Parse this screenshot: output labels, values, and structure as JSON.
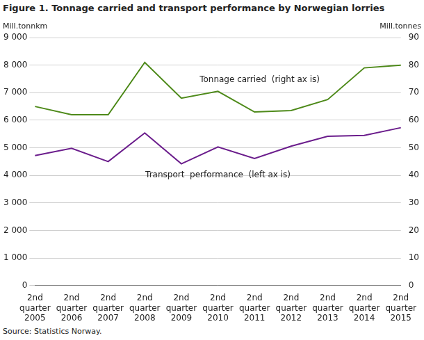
{
  "chart_data": {
    "type": "line",
    "title": "Figure 1.  Tonnage carried and transport performance by Norwegian lorries",
    "ylabel": "Mill.tonnkm",
    "y2label": "Mill.tonnes",
    "source": "Source: Statistics Norway.",
    "categories": [
      "2nd quarter 2005",
      "2nd quarter 2006",
      "2nd quarter 2007",
      "2nd quarter 2008",
      "2nd quarter 2009",
      "2nd quarter 2010",
      "2nd quarter 2011",
      "2nd quarter 2012",
      "2nd quarter 2013",
      "2nd quarter 2014",
      "2nd quarter 2015"
    ],
    "series": [
      {
        "name": "Tonnage carried  (right ax is)",
        "color": "#4e8a1a",
        "axis": "y2",
        "values": [
          65,
          62,
          62,
          81,
          68,
          70.5,
          63,
          63.5,
          67.5,
          79,
          80
        ]
      },
      {
        "name": "Transport  performance  (left ax is)",
        "color": "#6b1d8c",
        "values": [
          4720,
          4980,
          4500,
          5540,
          4420,
          5030,
          4610,
          5060,
          5420,
          5450,
          5730
        ]
      }
    ],
    "ylim": [
      0,
      9000
    ],
    "yticks": [
      0,
      {
        "value": 1000,
        "label": "1 000"
      },
      {
        "value": 2000,
        "label": "2 000"
      },
      {
        "value": 3000,
        "label": "3 000"
      },
      {
        "value": 4000,
        "label": "4 000"
      },
      {
        "value": 5000,
        "label": "5 000"
      },
      {
        "value": 6000,
        "label": "6 000"
      },
      {
        "value": 7000,
        "label": "7 000"
      },
      {
        "value": 8000,
        "label": "8 000"
      },
      {
        "value": 9000,
        "label": "9 000"
      }
    ],
    "y2lim": [
      0,
      90
    ],
    "y2ticks": [
      0,
      10,
      20,
      30,
      40,
      50,
      60,
      70,
      80,
      90
    ],
    "grid": true
  }
}
